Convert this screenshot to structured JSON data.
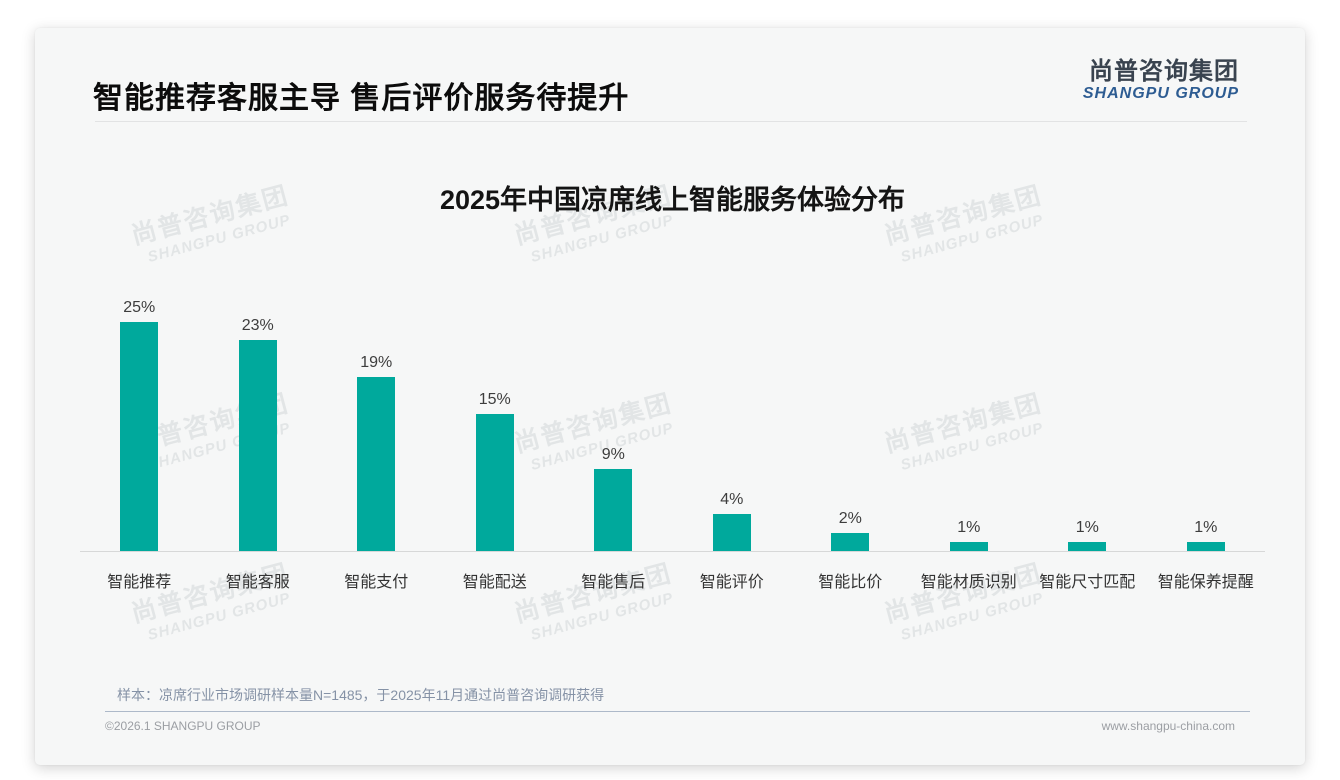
{
  "slide": {
    "title": "智能推荐客服主导 售后评价服务待提升",
    "logo": {
      "cn": "尚普咨询集团",
      "en": "SHANGPU GROUP"
    },
    "watermark": {
      "cn": "尚普咨询集团",
      "en": "SHANGPU GROUP"
    },
    "footnote": "样本：凉席行业市场调研样本量N=1485，于2025年11月通过尚普咨询调研获得",
    "footer": {
      "left": "©2026.1 SHANGPU GROUP",
      "right": "www.shangpu-china.com"
    }
  },
  "chart_data": {
    "type": "bar",
    "title": "2025年中国凉席线上智能服务体验分布",
    "categories": [
      "智能推荐",
      "智能客服",
      "智能支付",
      "智能配送",
      "智能售后",
      "智能评价",
      "智能比价",
      "智能材质识别",
      "智能尺寸匹配",
      "智能保养提醒"
    ],
    "values": [
      25,
      23,
      19,
      15,
      9,
      4,
      2,
      1,
      1,
      1
    ],
    "value_labels": [
      "25%",
      "23%",
      "19%",
      "15%",
      "9%",
      "4%",
      "2%",
      "1%",
      "1%",
      "1%"
    ],
    "unit": "%",
    "xlabel": "",
    "ylabel": "",
    "ylim": [
      0,
      27
    ],
    "grid": false,
    "legend": "none",
    "bar_color": "#00a99c"
  },
  "colors": {
    "bar": "#00a99c",
    "logo_dark": "#39434f",
    "logo_blue": "#2d5c92",
    "footnote_text": "#8592a6",
    "footer_text": "#9b9ea3"
  }
}
